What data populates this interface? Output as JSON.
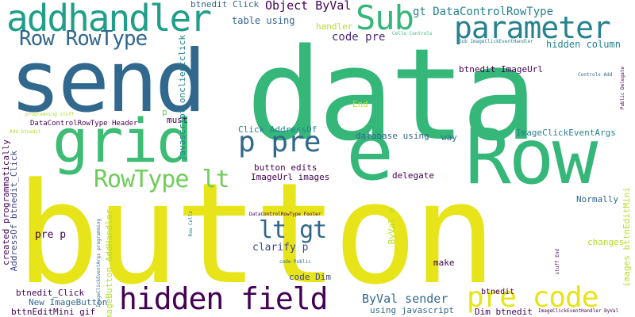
{
  "words": [
    {
      "text": "button",
      "color": "#e7e419"
    },
    {
      "text": "data",
      "color": "#35b779"
    },
    {
      "text": "send",
      "color": "#31688e"
    },
    {
      "text": "Row",
      "color": "#35b779"
    },
    {
      "text": "grid",
      "color": "#3dbc74"
    },
    {
      "text": "e",
      "color": "#35b779"
    },
    {
      "text": "addhandler",
      "color": "#1f9e89"
    },
    {
      "text": "parameter",
      "color": "#26828e"
    },
    {
      "text": "Sub",
      "color": "#35b779"
    },
    {
      "text": "hidden field",
      "color": "#440154"
    },
    {
      "text": "pre code",
      "color": "#e7e419"
    },
    {
      "text": "p pre",
      "color": "#31688e"
    },
    {
      "text": "RowType lt",
      "color": "#6ece58"
    },
    {
      "text": "lt gt",
      "color": "#31688e"
    },
    {
      "text": "Row RowType",
      "color": "#31688e"
    },
    {
      "text": "gt DataControlRowType",
      "color": "#26828e"
    },
    {
      "text": "Object ByVal",
      "color": "#440154"
    },
    {
      "text": "code pre",
      "color": "#482878"
    },
    {
      "text": "ByVal sender",
      "color": "#31688e"
    },
    {
      "text": "btnedit Click",
      "color": "#31688e"
    },
    {
      "text": "table using",
      "color": "#31688e"
    },
    {
      "text": "handler",
      "color": "#b5de2b"
    },
    {
      "text": "hidden column",
      "color": "#26828e"
    },
    {
      "text": "btnedit ImageUrl",
      "color": "#440154"
    },
    {
      "text": "End",
      "color": "#b5de2b"
    },
    {
      "text": "Click AddressOf",
      "color": "#26828e"
    },
    {
      "text": "database using",
      "color": "#31688e"
    },
    {
      "text": "way",
      "color": "#31688e"
    },
    {
      "text": "ImageClickEventArgs",
      "color": "#26828e"
    },
    {
      "text": "DataControlRowType Header",
      "color": "#440154"
    },
    {
      "text": "button edits",
      "color": "#440154"
    },
    {
      "text": "ImageUrl images",
      "color": "#440154"
    },
    {
      "text": "delegate",
      "color": "#440154"
    },
    {
      "text": "Normally",
      "color": "#31688e"
    },
    {
      "text": "pre p",
      "color": "#440154"
    },
    {
      "text": "clarify p",
      "color": "#3e4989"
    },
    {
      "text": "make",
      "color": "#440154"
    },
    {
      "text": "changes",
      "color": "#b5de2b"
    },
    {
      "text": "code Dim",
      "color": "#3e4989"
    },
    {
      "text": "btnedit_Click",
      "color": "#440154"
    },
    {
      "text": "btnedit",
      "color": "#440154"
    },
    {
      "text": "New ImageButton",
      "color": "#31688e"
    },
    {
      "text": "bttnEditMini gif",
      "color": "#440154"
    },
    {
      "text": "using javascript",
      "color": "#31688e"
    },
    {
      "text": "Dim btnedit",
      "color": "#440154"
    },
    {
      "text": "must",
      "color": "#440154"
    },
    {
      "text": "p",
      "color": "#6ece58"
    },
    {
      "text": "programming stuff",
      "color": "#b5de2b"
    },
    {
      "text": "Add btnedit",
      "color": "#b5de2b"
    },
    {
      "text": "Cells Controls",
      "color": "#35b779"
    },
    {
      "text": "Sub ImageClickEventHandler",
      "color": "#26828e"
    },
    {
      "text": "Controls Add",
      "color": "#31688e"
    },
    {
      "text": "Public Delegate",
      "color": "#440154"
    },
    {
      "text": "DataControlRowType Footer",
      "color": "#440154"
    },
    {
      "text": "code Public",
      "color": "#31688e"
    },
    {
      "text": "stuff End",
      "color": "#440154"
    },
    {
      "text": "ImageClickEventHandler ByVal",
      "color": "#440154"
    },
    {
      "text": "created programmatically",
      "color": "#440154"
    },
    {
      "text": "AddressOf btnedit_Click",
      "color": "#3e4989"
    },
    {
      "text": "javascript onclientclick",
      "color": "#26828e"
    },
    {
      "text": "ImageButton AddHandler",
      "color": "#b5de2b"
    },
    {
      "text": "ImageClickEventArgs programming",
      "color": "#31688e"
    },
    {
      "text": "Row Cells",
      "color": "#26828e"
    },
    {
      "text": "ByVal e",
      "color": "#b5de2b"
    },
    {
      "text": "images bttnEditMini",
      "color": "#b5de2b"
    }
  ]
}
